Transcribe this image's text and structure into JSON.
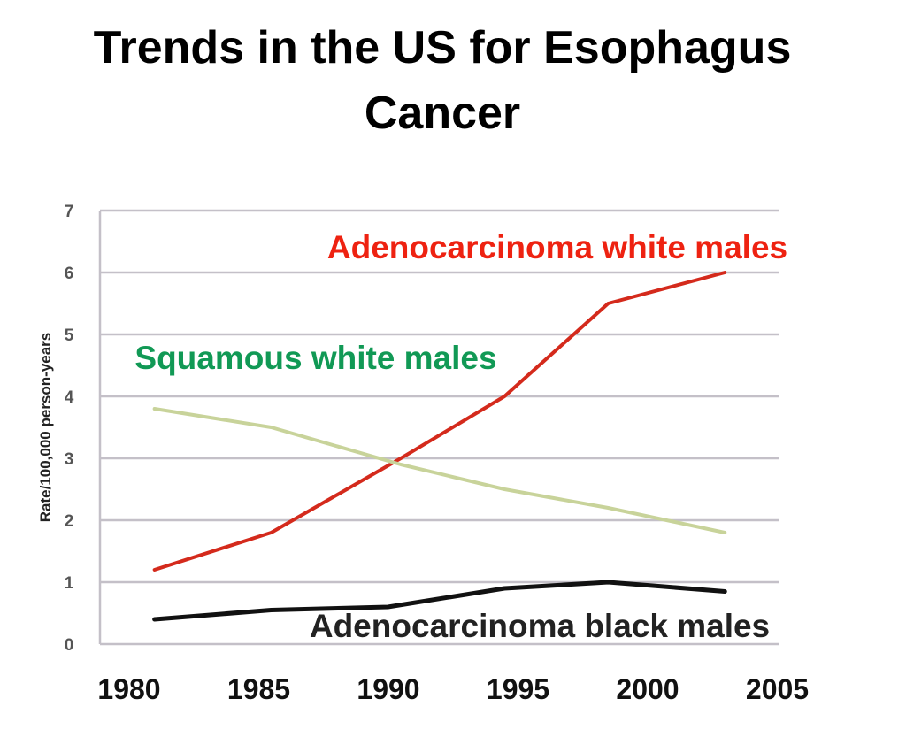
{
  "title_line1": "Trends in the US for Esophagus",
  "title_line2": "Cancer",
  "chart_data": {
    "type": "line",
    "title": "Trends in the US for Esophagus Cancer",
    "xlabel": "",
    "ylabel": "Rate/100,000 person-years",
    "xlim": [
      1980,
      2005
    ],
    "ylim": [
      0,
      7
    ],
    "xticks": [
      "1980",
      "1985",
      "1990",
      "1995",
      "2000",
      "2005"
    ],
    "yticks": [
      "0",
      "1",
      "2",
      "3",
      "4",
      "5",
      "6",
      "7"
    ],
    "grid": "horizontal",
    "series": [
      {
        "name": "Adenocarcinoma white males",
        "color": "#d42a1c",
        "label_color": "#ee2211",
        "x": [
          1980.5,
          1985,
          1990,
          1994,
          1998,
          2002.5
        ],
        "y": [
          1.2,
          1.8,
          3.0,
          4.0,
          5.5,
          6.0
        ]
      },
      {
        "name": "Squamous white males",
        "color": "#c8d39a",
        "label_color": "#119955",
        "x": [
          1980.5,
          1985,
          1990,
          1994,
          1998,
          2002.5
        ],
        "y": [
          3.8,
          3.5,
          2.9,
          2.5,
          2.2,
          1.8
        ]
      },
      {
        "name": "Adenocarcinoma black males",
        "color": "#111111",
        "label_color": "#222222",
        "x": [
          1980.5,
          1985,
          1989.5,
          1994,
          1998,
          2002.5
        ],
        "y": [
          0.4,
          0.55,
          0.6,
          0.9,
          1.0,
          0.85
        ]
      }
    ]
  }
}
